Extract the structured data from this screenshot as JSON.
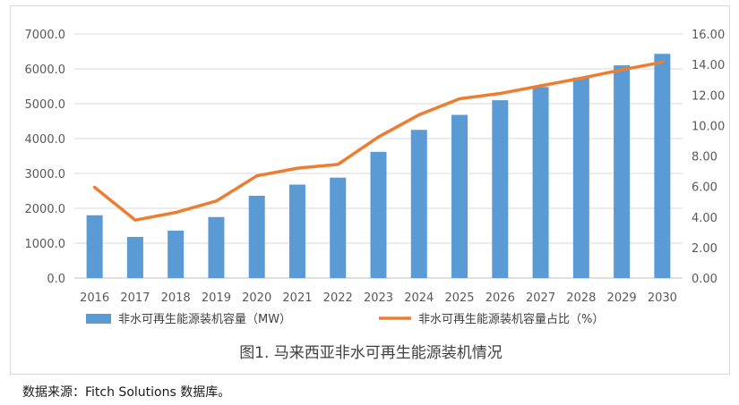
{
  "chart_data": {
    "type": "bar",
    "categories": [
      "2016",
      "2017",
      "2018",
      "2019",
      "2020",
      "2021",
      "2022",
      "2023",
      "2024",
      "2025",
      "2026",
      "2027",
      "2028",
      "2029",
      "2030"
    ],
    "series": [
      {
        "name": "非水可再生能源装机容量（MW）",
        "type": "bar",
        "axis": "left",
        "color": "#5b9bd5",
        "values": [
          1800,
          1180,
          1360,
          1750,
          2360,
          2680,
          2880,
          3620,
          4250,
          4680,
          5100,
          5480,
          5750,
          6100,
          6430
        ]
      },
      {
        "name": "非水可再生能源装机容量占比（%）",
        "type": "line",
        "axis": "right",
        "color": "#ed7d31",
        "values": [
          5.95,
          3.8,
          4.3,
          5.05,
          6.7,
          7.2,
          7.45,
          9.25,
          10.7,
          11.75,
          12.1,
          12.6,
          13.1,
          13.65,
          14.15
        ]
      }
    ],
    "y_left": {
      "min": 0,
      "max": 7000,
      "step": 1000,
      "tick_labels": [
        "0.0",
        "1000.0",
        "2000.0",
        "3000.0",
        "4000.0",
        "5000.0",
        "6000.0",
        "7000.0"
      ]
    },
    "y_right": {
      "min": 0,
      "max": 16,
      "step": 2,
      "tick_labels": [
        "0.00",
        "2.00",
        "4.00",
        "6.00",
        "8.00",
        "10.00",
        "12.00",
        "14.00",
        "16.00"
      ]
    },
    "grid": true,
    "legend": "bottom",
    "caption": "图1.  马来西亚非水可再生能源装机情况"
  },
  "source_note": "数据来源：Fitch Solutions 数据库。"
}
